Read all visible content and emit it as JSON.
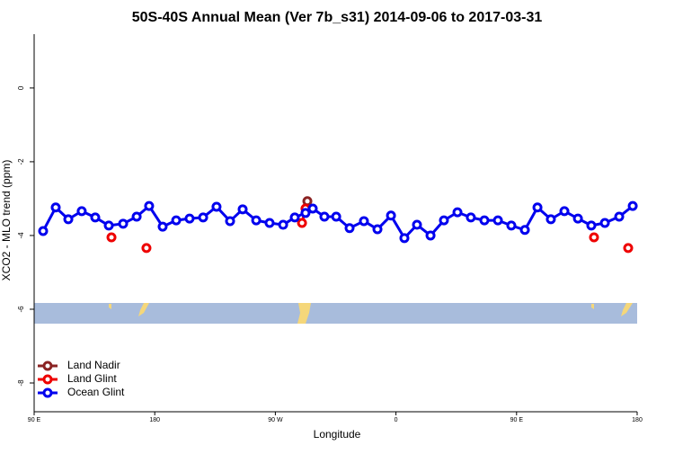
{
  "chart_data": {
    "type": "line",
    "title": "50S-40S Annual Mean (Ver 7b_s31)   2014-09-06 to 2017-03-31",
    "x_label": "Longitude",
    "y_label": "XCO2 - MLO trend (ppm)",
    "xlim": [
      90,
      540
    ],
    "ylim": [
      -8.78,
      1.46
    ],
    "xticks": [
      {
        "value": 90,
        "label": "90 E"
      },
      {
        "value": 180,
        "label": "180"
      },
      {
        "value": 270,
        "label": "90 W"
      },
      {
        "value": 360,
        "label": "0"
      },
      {
        "value": 450,
        "label": "90 E"
      },
      {
        "value": 540,
        "label": "180"
      }
    ],
    "yticks": [
      0,
      -2,
      -4,
      -6,
      -8
    ],
    "legend": "bottom-left",
    "series": [
      {
        "name": "Land Nadir",
        "color": "#8b2323",
        "x": [
          293.9
        ],
        "values": [
          -3.07
        ]
      },
      {
        "name": "Land Glint",
        "color": "#ee0000",
        "x": [
          147.7,
          173.8,
          289.9,
          292.5,
          507.8,
          533.3
        ],
        "values": [
          -4.05,
          -4.34,
          -3.66,
          -3.27,
          -4.05,
          -4.34
        ]
      },
      {
        "name": "Ocean Glint",
        "color": "#0000ee",
        "x": [
          96.7,
          106.1,
          115.5,
          125.5,
          135.6,
          145.7,
          156.4,
          166.5,
          175.8,
          185.9,
          196.0,
          206.0,
          216.1,
          226.1,
          236.2,
          245.6,
          255.7,
          265.7,
          275.8,
          284.5,
          292.5,
          297.9,
          306.6,
          315.4,
          325.4,
          336.1,
          346.2,
          356.3,
          366.3,
          375.7,
          385.8,
          395.8,
          405.9,
          415.9,
          426.0,
          436.1,
          446.1,
          456.2,
          465.6,
          475.6,
          485.7,
          495.8,
          505.8,
          515.9,
          526.6,
          536.7
        ],
        "values": [
          -3.88,
          -3.24,
          -3.56,
          -3.34,
          -3.51,
          -3.73,
          -3.68,
          -3.49,
          -3.2,
          -3.76,
          -3.59,
          -3.54,
          -3.51,
          -3.22,
          -3.61,
          -3.29,
          -3.59,
          -3.66,
          -3.71,
          -3.51,
          -3.39,
          -3.27,
          -3.49,
          -3.49,
          -3.8,
          -3.61,
          -3.83,
          -3.46,
          -4.07,
          -3.71,
          -4.0,
          -3.59,
          -3.37,
          -3.51,
          -3.59,
          -3.59,
          -3.73,
          -3.85,
          -3.24,
          -3.56,
          -3.34,
          -3.54,
          -3.73,
          -3.66,
          -3.49,
          -3.2
        ]
      }
    ]
  }
}
